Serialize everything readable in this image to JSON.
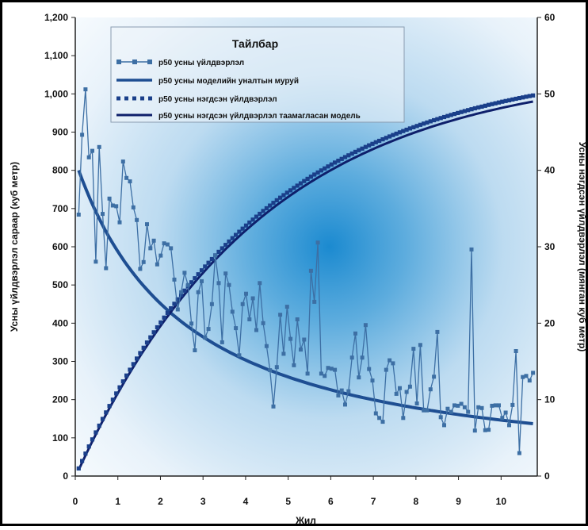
{
  "chart_data": {
    "type": "line",
    "legend": {
      "title": "Тайлбар",
      "placement": "top-left",
      "entries": [
        "p50 усны үйлдвэрлэл",
        "p50 усны моделийн уналтын муруй",
        "p50 усны нэгдсэн үйлдвэрлэл",
        "p50 усны нэгдсэн үйлдвэрлэл таамагласан модель"
      ]
    },
    "xlabel": "Жил",
    "ylabel_left": "Усны үйлдвэрлэл сараар (куб метр)",
    "ylabel_right": "Усны нэгдсэн үйлдвэрлэл (мянган куб метр)",
    "xlim": [
      0,
      10.85
    ],
    "ylim_left": [
      0,
      1200
    ],
    "ylim_right": [
      0,
      60
    ],
    "x_ticks": [
      0,
      1,
      2,
      3,
      4,
      5,
      6,
      7,
      8,
      9,
      10
    ],
    "y_left_ticks": [
      0,
      100,
      200,
      300,
      400,
      500,
      600,
      700,
      800,
      900,
      1000,
      1100,
      1200
    ],
    "y_left_tick_labels": [
      "0",
      "100",
      "200",
      "300",
      "400",
      "500",
      "600",
      "700",
      "800",
      "900",
      "1,000",
      "1,100",
      "1,200"
    ],
    "y_right_ticks": [
      0,
      10,
      20,
      30,
      40,
      50,
      60
    ],
    "grid": false,
    "monthly_production": [
      684,
      893,
      1012,
      834,
      851,
      561,
      861,
      686,
      544,
      726,
      708,
      706,
      664,
      823,
      780,
      771,
      703,
      670,
      542,
      560,
      659,
      596,
      616,
      554,
      577,
      609,
      606,
      596,
      514,
      436,
      481,
      532,
      500,
      399,
      329,
      481,
      510,
      362,
      385,
      450,
      577,
      505,
      350,
      530,
      500,
      430,
      387,
      316,
      450,
      477,
      410,
      465,
      382,
      505,
      400,
      340,
      277,
      182,
      285,
      422,
      320,
      443,
      359,
      290,
      410,
      331,
      357,
      268,
      537,
      456,
      611,
      268,
      262,
      283,
      281,
      278,
      211,
      224,
      187,
      222,
      310,
      373,
      258,
      310,
      395,
      280,
      250,
      164,
      152,
      142,
      278,
      303,
      295,
      215,
      230,
      152,
      220,
      234,
      333,
      190,
      343,
      172,
      172,
      227,
      260,
      377,
      154,
      133,
      176,
      168,
      185,
      184,
      189,
      180,
      168,
      593,
      119,
      180,
      178,
      120,
      121,
      184,
      185,
      185,
      152,
      166,
      133,
      186,
      327,
      60,
      259,
      262,
      250,
      270
    ],
    "monthly_decline_model": {
      "initial": 800,
      "final_x": 10.75,
      "final": 137,
      "shape": "hyperbolic"
    },
    "cumulative_production_thousand_m3": {
      "x_start": 0.08,
      "x_end": 10.75,
      "y_start": 1.0,
      "y_end": 49.8
    },
    "cumulative_model_thousand_m3": {
      "x_start": 0.08,
      "x_end": 10.75,
      "y_start": 0.8,
      "y_end": 49.0
    }
  },
  "colors": {
    "monthly_series": "#3d6fa4",
    "decline_model": "#1e4e92",
    "cumulative_series": "#1a3f8a",
    "cumulative_model": "#0e1f6b",
    "plot_glow": "#2a8fcf",
    "axis": "#222222"
  }
}
